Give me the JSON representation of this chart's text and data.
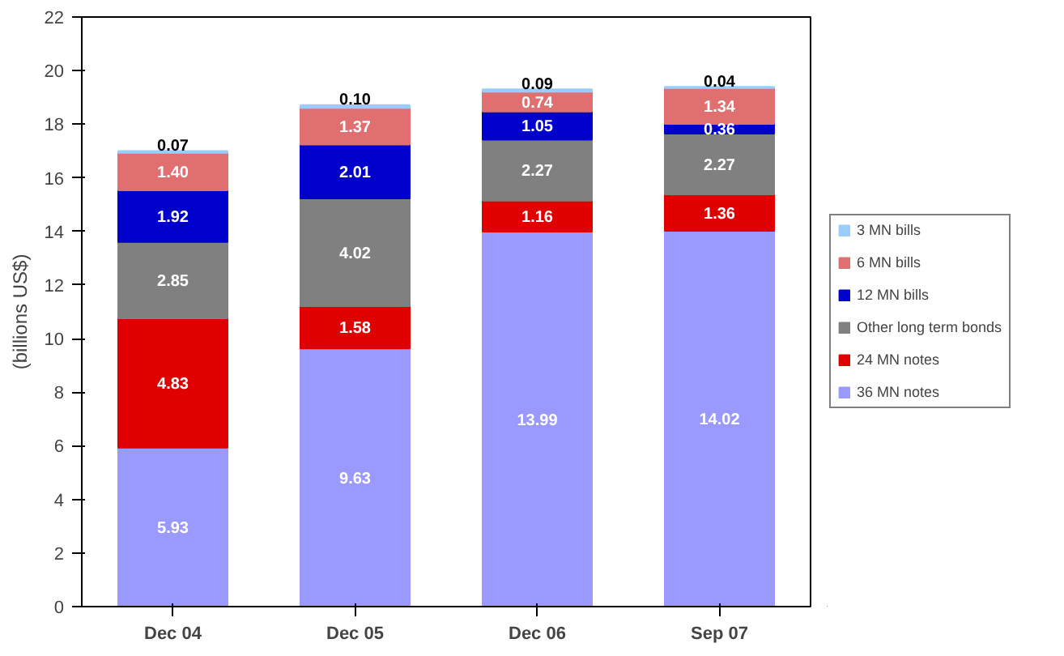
{
  "chart_data": {
    "type": "bar",
    "stacked": true,
    "ylabel": "(billions US$)",
    "categories": [
      "Dec 04",
      "Dec 05",
      "Dec 06",
      "Sep 07"
    ],
    "series": [
      {
        "name": "36 MN notes",
        "color": "#9999ff",
        "values": [
          5.93,
          9.63,
          13.99,
          14.02
        ],
        "value_labels": [
          "5.93",
          "9.63",
          "13.99",
          "14.02"
        ]
      },
      {
        "name": "24 MN notes",
        "color": "#e00000",
        "values": [
          4.83,
          1.58,
          1.16,
          1.36
        ],
        "value_labels": [
          "4.83",
          "1.58",
          "1.16",
          "1.36"
        ]
      },
      {
        "name": "Other long term bonds",
        "color": "#808080",
        "values": [
          2.85,
          4.02,
          2.27,
          2.27
        ],
        "value_labels": [
          "2.85",
          "4.02",
          "2.27",
          "2.27"
        ]
      },
      {
        "name": "12 MN bills",
        "color": "#0000cc",
        "values": [
          1.92,
          2.01,
          1.05,
          0.36
        ],
        "value_labels": [
          "1.92",
          "2.01",
          "1.05",
          "0.36"
        ]
      },
      {
        "name": "6 MN bills",
        "color": "#e07070",
        "values": [
          1.4,
          1.37,
          0.74,
          1.34
        ],
        "value_labels": [
          "1.40",
          "1.37",
          "0.74",
          "1.34"
        ]
      },
      {
        "name": "3 MN bills",
        "color": "#99ccff",
        "values": [
          0.07,
          0.1,
          0.09,
          0.04
        ],
        "value_labels": [
          "0.07",
          "0.10",
          "0.09",
          "0.04"
        ]
      }
    ],
    "ylim": [
      0,
      22
    ],
    "yticks": [
      0,
      2,
      4,
      6,
      8,
      10,
      12,
      14,
      16,
      18,
      20,
      22
    ],
    "grid": false,
    "legend": "right"
  }
}
